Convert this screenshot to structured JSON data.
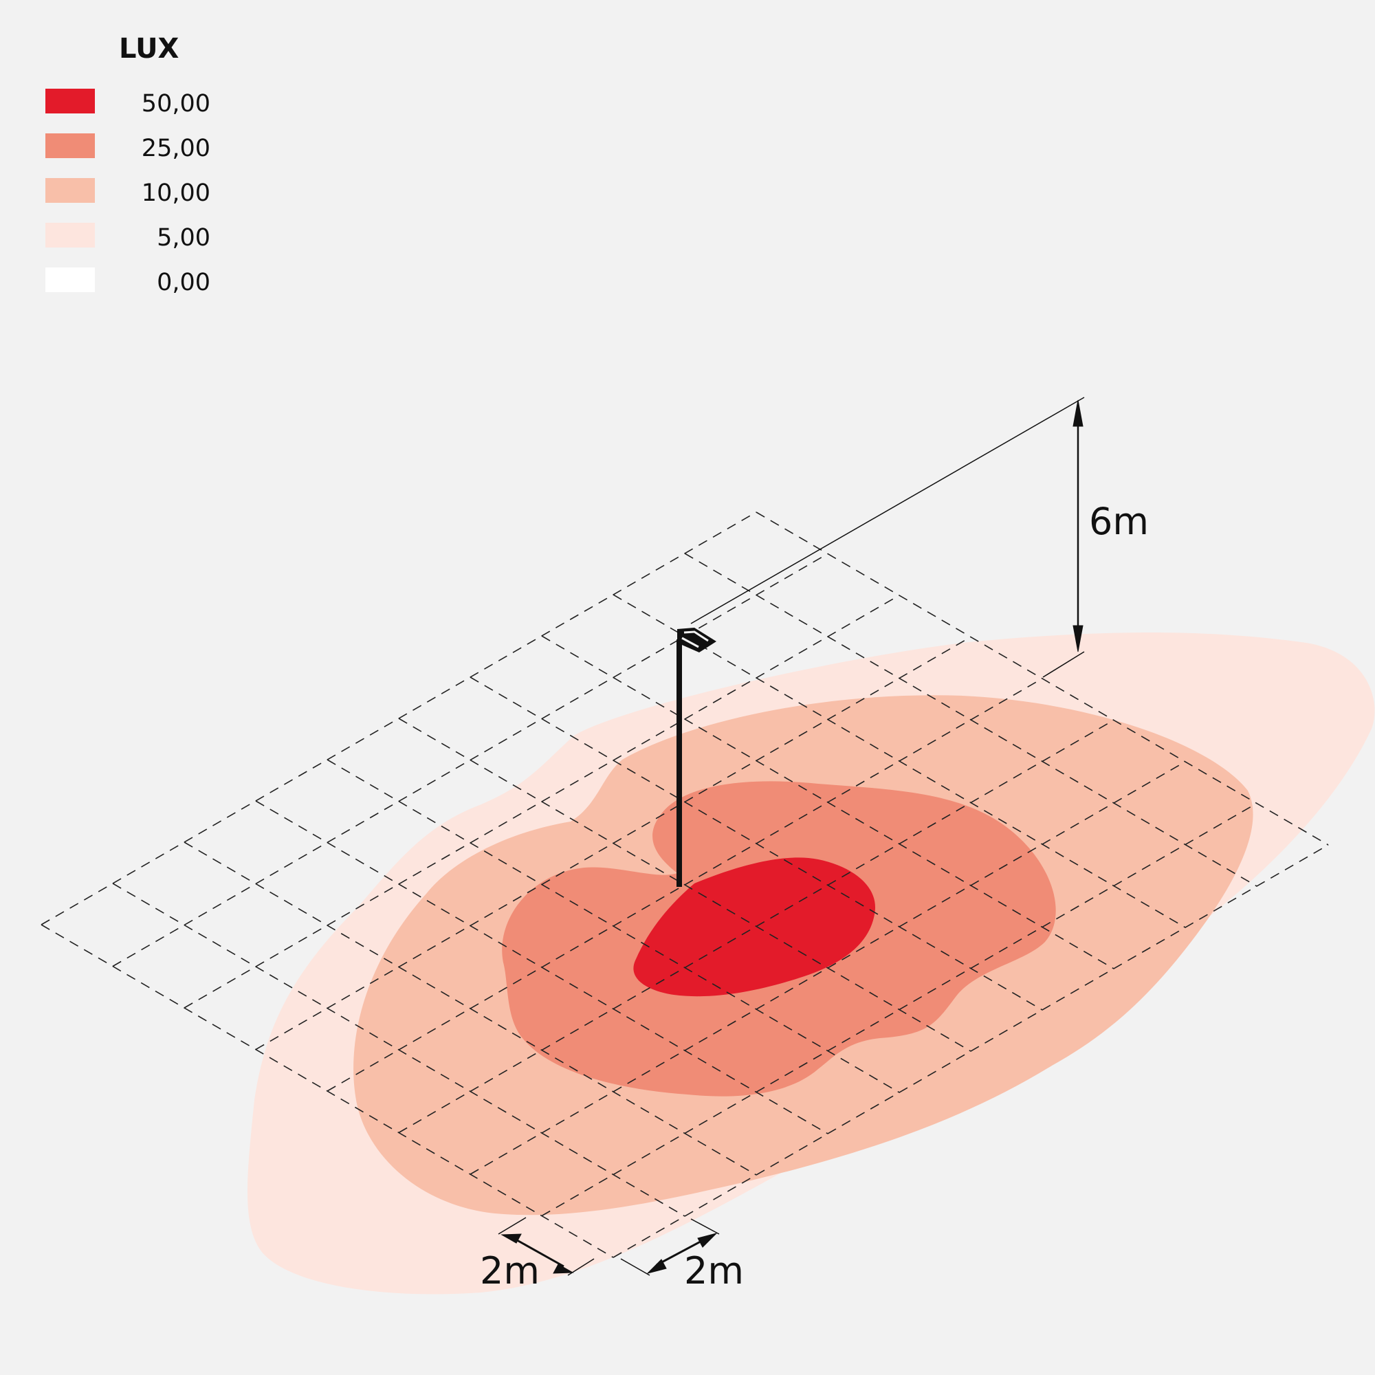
{
  "legend": {
    "title": "LUX",
    "items": [
      {
        "value": "50,00",
        "color": "#e31b2a"
      },
      {
        "value": "25,00",
        "color": "#f08c76"
      },
      {
        "value": "10,00",
        "color": "#f8bfa9"
      },
      {
        "value": "5,00",
        "color": "#fde5de"
      },
      {
        "value": "0,00",
        "color": "#ffffff"
      }
    ]
  },
  "dimensions": {
    "height_label": "6m",
    "grid_spacing_label_left": "2m",
    "grid_spacing_label_right": "2m"
  },
  "colors": {
    "background": "#f2f2f2",
    "grid_line": "#222222",
    "pole": "#111111"
  }
}
